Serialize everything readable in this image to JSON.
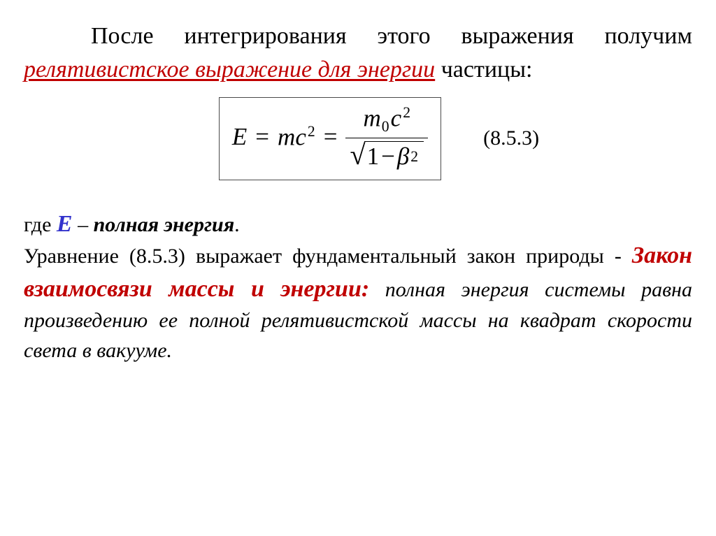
{
  "colors": {
    "background": "#ffffff",
    "text": "#000000",
    "accent_red": "#c00000",
    "accent_blue": "#3333cc",
    "box_border": "#4a4a4a"
  },
  "typography": {
    "family": "Times New Roman",
    "body_fontsize_pt": 26,
    "para2_fontsize_pt": 23,
    "emphasis_fontsize_pt": 26
  },
  "para1": {
    "pre": "После интегрирования этого выражения получим ",
    "emph": "релятивистское выражение для энергии",
    "post": " частицы:"
  },
  "formula": {
    "lhs_E": "E",
    "eq1": "=",
    "mc2_m": "m",
    "mc2_c": "c",
    "mc2_exp": "2",
    "eq2": "=",
    "num_m": "m",
    "num_sub0": "0",
    "num_c": "c",
    "num_exp": "2",
    "den_one": "1",
    "den_minus": "−",
    "den_beta": "β",
    "den_exp": "2",
    "box_border_width": 1.5
  },
  "eq_number": "(8.5.3)",
  "para2_lead": {
    "pre": "где ",
    "E": "E",
    "dash": " – ",
    "term": "полная энергия",
    "post": "."
  },
  "para2": {
    "s1_pre": "Уравнение (8.5.3) выражает фундаментальный закон природы - ",
    "law": "Закон взаимосвязи массы и энергии:",
    "def": " полная энергия системы равна произведению ее полной релятивистской массы на квадрат скорости света в вакууме."
  }
}
